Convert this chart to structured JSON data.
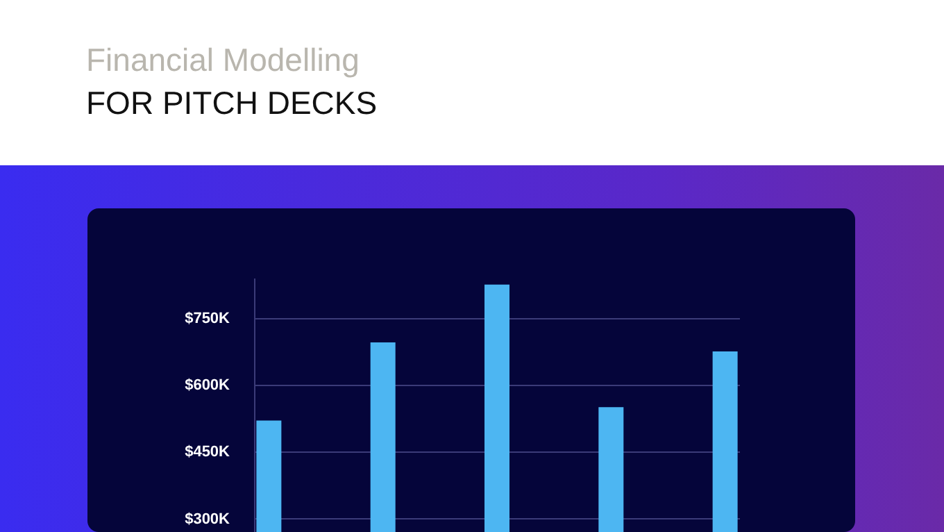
{
  "chart_data": {
    "type": "bar",
    "title": "Financial Modelling",
    "subtitle": "FOR PITCH DECKS",
    "categories": [
      null,
      null,
      null,
      null,
      null
    ],
    "values": [
      520,
      695,
      825,
      550,
      675
    ],
    "color": "#4db6f2",
    "ylim": [
      270,
      840
    ],
    "yticks": [
      {
        "value": 300,
        "label": "$300K"
      },
      {
        "value": 450,
        "label": "$450K"
      },
      {
        "value": 600,
        "label": "$600K"
      },
      {
        "value": 750,
        "label": "$750K"
      }
    ],
    "grid": "y",
    "tick_labels": "y"
  }
}
